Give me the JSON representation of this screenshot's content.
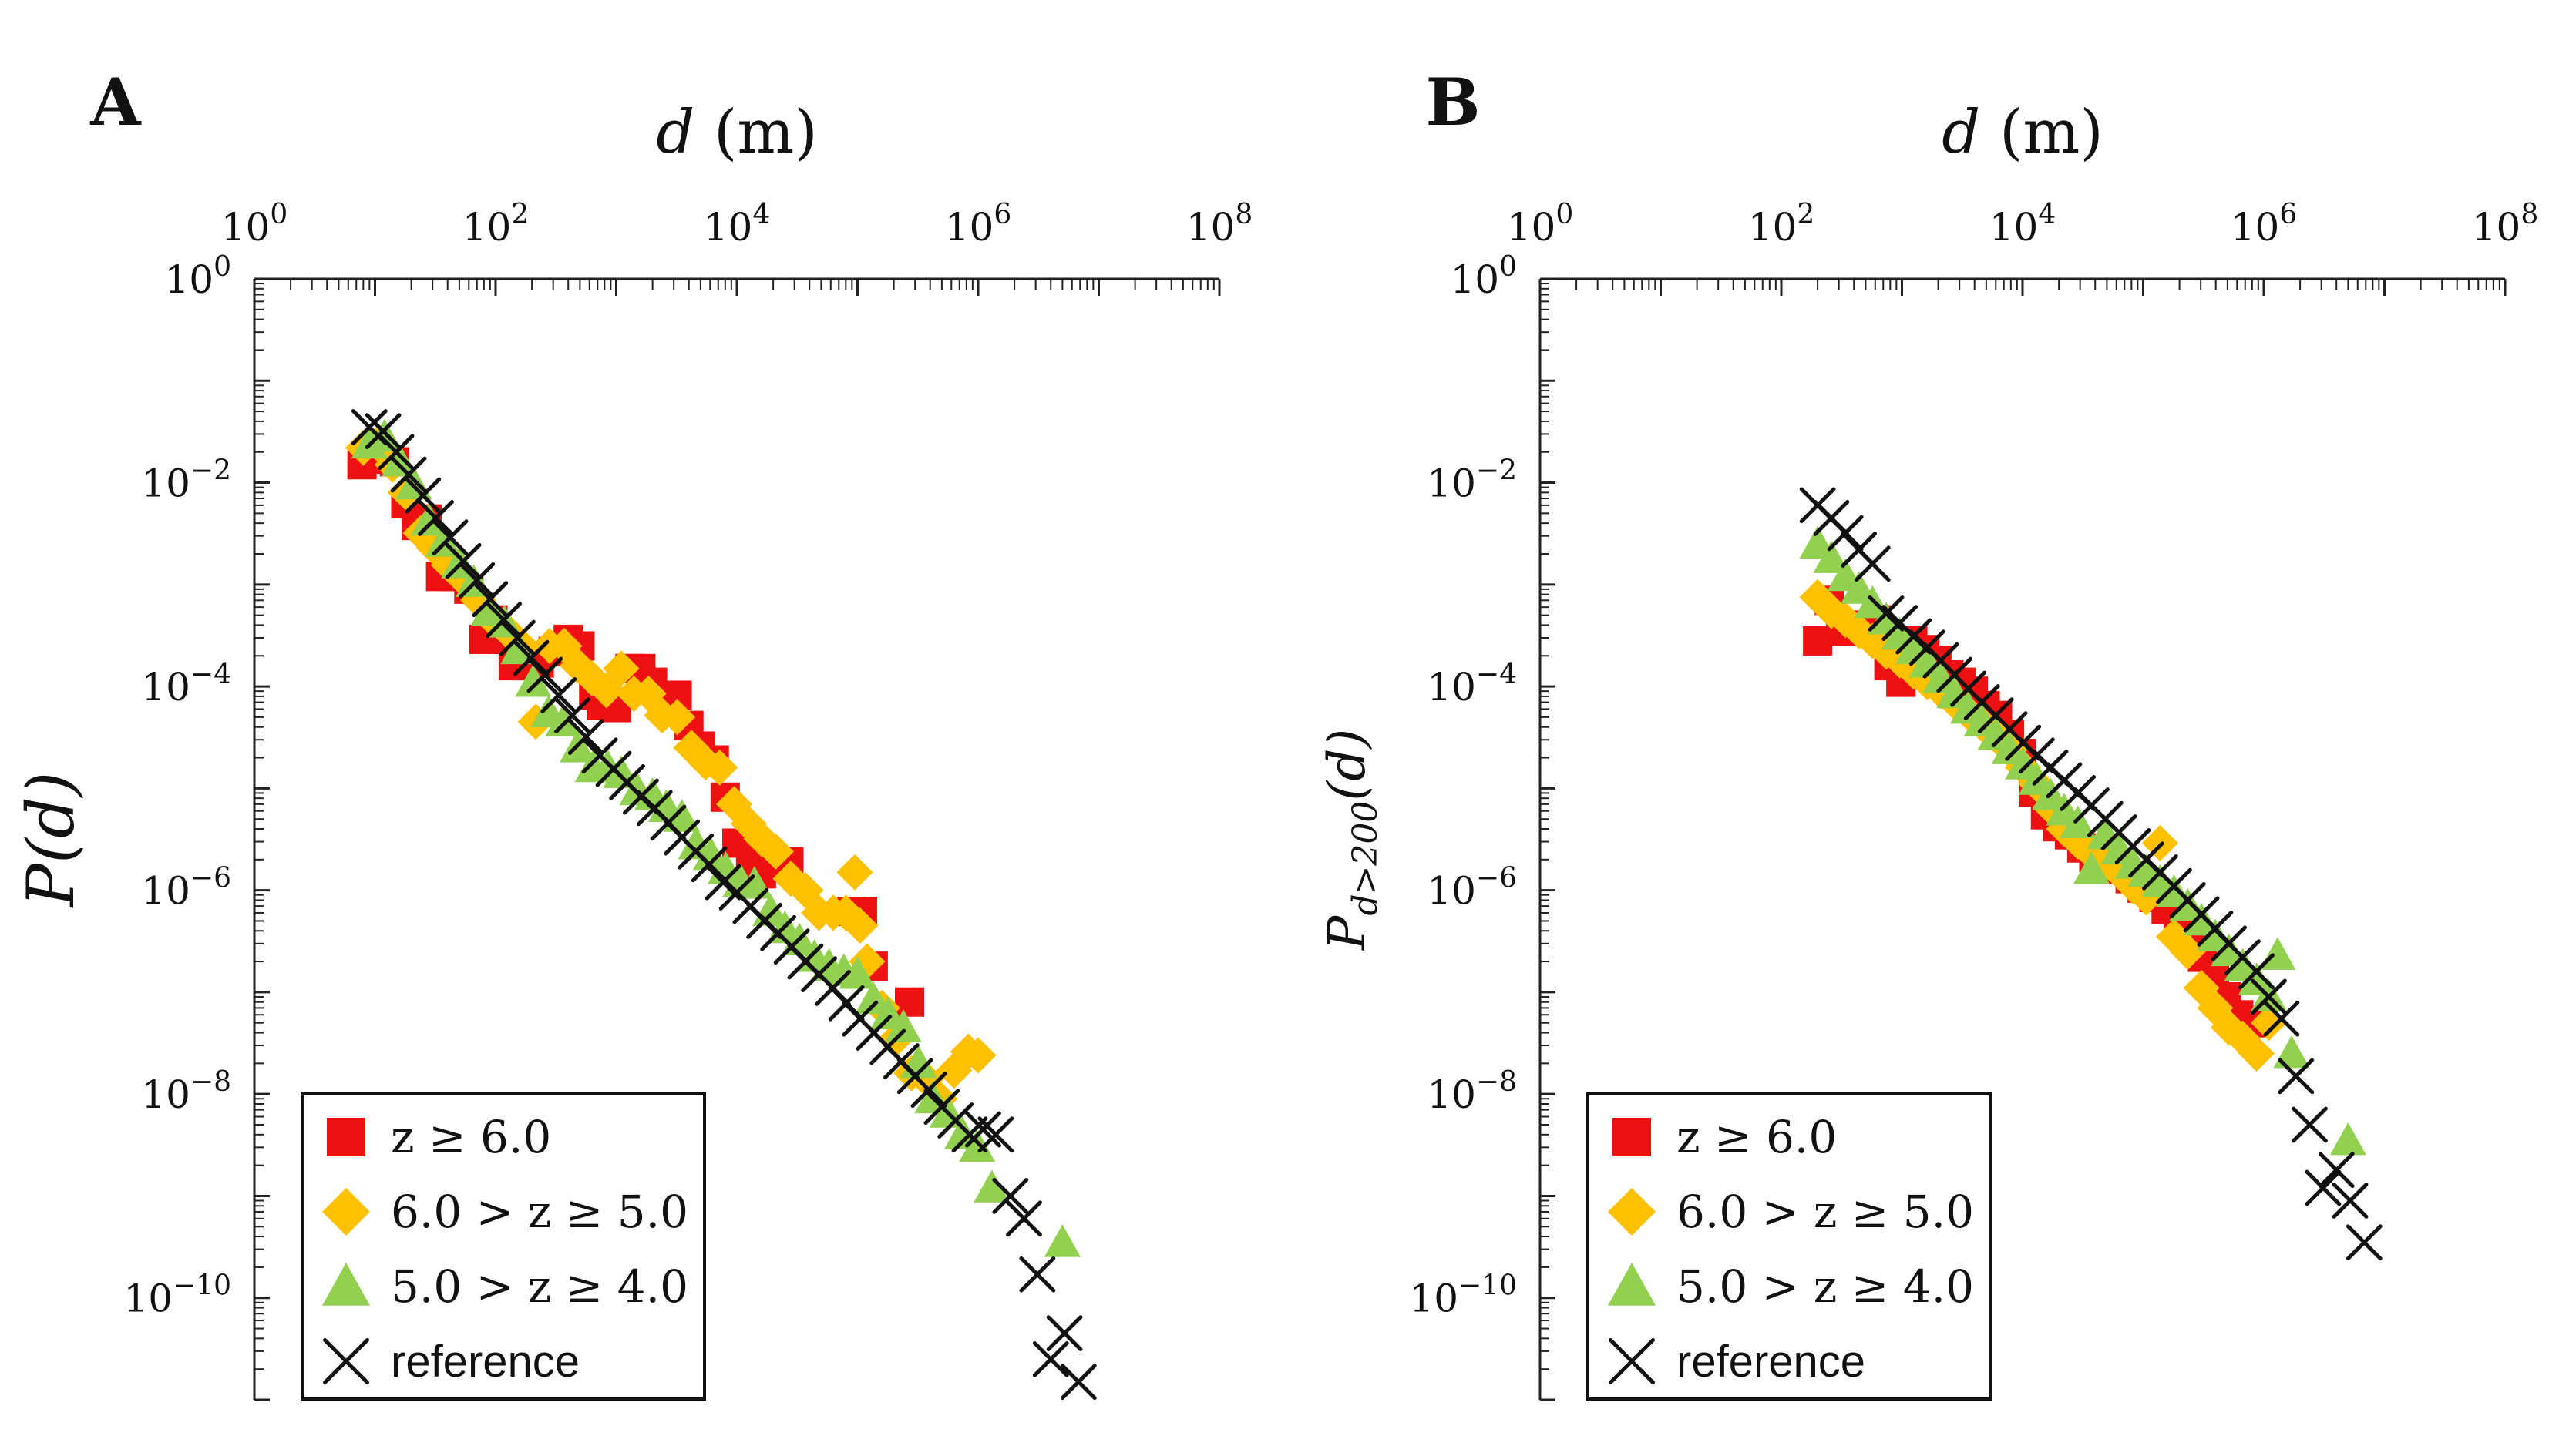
{
  "chart_data": [
    {
      "type": "scatter",
      "panel_label": "A",
      "xlabel": "d (m)",
      "ylabel": "P(d)",
      "xscale": "log",
      "yscale": "log",
      "xlim": [
        1,
        100000000
      ],
      "ylim": [
        1e-11,
        1
      ],
      "x_ticks": [
        1,
        100,
        10000,
        1000000,
        100000000
      ],
      "x_tick_labels": [
        "10^0",
        "10^2",
        "10^4",
        "10^6",
        "10^8"
      ],
      "y_ticks": [
        1,
        0.01,
        0.0001,
        1e-06,
        1e-08,
        1e-10
      ],
      "y_tick_labels": [
        "10^0",
        "10^-2",
        "10^-4",
        "10^-6",
        "10^-8",
        "10^-10"
      ],
      "legend_position": "bottom-left",
      "series": [
        {
          "name": "z ≥ 6.0",
          "marker": "square",
          "color": "#ee1111",
          "x": [
            7.8,
            10.7,
            14.5,
            18,
            22,
            27,
            35,
            45,
            60,
            80,
            95,
            110,
            140,
            180,
            230,
            300,
            400,
            500,
            650,
            750,
            1000,
            1300,
            1600,
            2000,
            2600,
            3200,
            4000,
            5000,
            6500,
            8000,
            10000,
            13000,
            16000,
            20000,
            27000,
            90000,
            110000,
            135000,
            270000
          ],
          "y": [
            0.015,
            0.017,
            0.016,
            0.0062,
            0.0038,
            0.0044,
            0.0012,
            0.0012,
            0.0009,
            0.00029,
            0.00045,
            0.00029,
            0.00016,
            0.00016,
            0.00017,
            0.00022,
            0.00029,
            0.00025,
            8.2e-05,
            6.5e-05,
            6.2e-05,
            0.00015,
            0.00015,
            0.00011,
            8.2e-05,
            8.2e-05,
            4.15e-05,
            2.6e-05,
            1.9e-05,
            8.2e-06,
            2.9e-06,
            1.9e-06,
            1.45e-06,
            1.85e-06,
            1.9e-06,
            6.2e-07,
            6.2e-07,
            1.8e-07,
            8e-08
          ]
        },
        {
          "name": "6.0 > z ≥ 5.0",
          "marker": "diamond",
          "color": "#ffc000",
          "x": [
            8,
            10.5,
            14,
            18,
            24,
            31,
            41,
            55,
            72,
            95,
            125,
            165,
            215,
            280,
            370,
            480,
            630,
            830,
            1100,
            1400,
            1850,
            2400,
            3200,
            4200,
            5500,
            7200,
            9500,
            12500,
            16000,
            21000,
            28000,
            37000,
            48000,
            63000,
            80000,
            95000,
            105000,
            120000,
            160000,
            210000,
            280000,
            370000,
            480000,
            630000,
            830000,
            1000000
          ],
          "y": [
            0.022,
            0.024,
            0.015,
            0.008,
            0.0032,
            0.0023,
            0.00155,
            0.0011,
            0.0007,
            0.00045,
            0.00035,
            0.00025,
            4.5e-05,
            0.00025,
            0.00025,
            0.00016,
            0.00012,
            9.2e-05,
            0.00015,
            8.5e-05,
            8.5e-05,
            5.2e-05,
            5e-05,
            2.5e-05,
            1.8e-05,
            1.6e-05,
            7e-06,
            4.5e-06,
            3.2e-06,
            2.4e-06,
            1.3e-06,
            1e-06,
            6e-07,
            6e-07,
            6e-07,
            1.5e-06,
            4.5e-07,
            2e-07,
            7e-08,
            3.5e-08,
            1.6e-08,
            1.4e-08,
            9e-09,
            1.7e-08,
            2.6e-08,
            2.4e-08
          ]
        },
        {
          "name": "5.0 > z ≥ 4.0",
          "marker": "triangle",
          "color": "#92d050",
          "x": [
            9,
            12,
            16,
            21,
            28,
            37,
            50,
            66,
            88,
            118,
            155,
            205,
            275,
            365,
            480,
            640,
            850,
            1100,
            1500,
            2000,
            2600,
            3500,
            4600,
            6100,
            8100,
            10800,
            14000,
            19000,
            25000,
            33000,
            44000,
            58000,
            77000,
            100000,
            135000,
            180000,
            240000,
            320000,
            420000,
            560000,
            740000,
            980000,
            1300000,
            5000000
          ],
          "y": [
            0.024,
            0.028,
            0.016,
            0.0095,
            0.0042,
            0.0026,
            0.0016,
            0.00105,
            0.00055,
            0.00042,
            0.00023,
            0.00011,
            5.5e-05,
            4.5e-05,
            2.5e-05,
            1.6e-05,
            1.6e-05,
            1.4e-05,
            9.5e-06,
            8.5e-06,
            6.5e-06,
            5.2e-06,
            2.8e-06,
            2.2e-06,
            1.6e-06,
            1.2e-06,
            1.15e-06,
            6.2e-07,
            4.2e-07,
            3.2e-07,
            2.2e-07,
            1.8e-07,
            1.6e-07,
            1.5e-07,
            8.5e-08,
            6e-08,
            4.5e-08,
            2e-08,
            9e-09,
            6.5e-09,
            4e-09,
            3e-09,
            1.2e-09,
            3.5e-10
          ]
        },
        {
          "name": "reference",
          "marker": "x",
          "color": "#111111",
          "x": [
            9,
            11.7,
            15,
            19,
            25,
            32,
            42,
            54,
            70,
            90,
            117,
            152,
            197,
            256,
            333,
            432,
            562,
            730,
            950,
            1230,
            1600,
            2080,
            2700,
            3500,
            4560,
            5900,
            7700,
            10000,
            13000,
            16900,
            22000,
            28500,
            37000,
            48000,
            62500,
            81000,
            105000,
            137000,
            178000,
            231000,
            300000,
            390000,
            500000,
            650000,
            850000,
            1100000,
            1400000,
            1850000,
            2400000,
            3100000,
            4000000,
            5200000,
            6800000
          ],
          "y": [
            0.035,
            0.032,
            0.02,
            0.012,
            0.0075,
            0.0045,
            0.0029,
            0.0017,
            0.0011,
            0.00072,
            0.00045,
            0.0003,
            0.00019,
            0.00013,
            8.2e-05,
            5.2e-05,
            3.2e-05,
            2.1e-05,
            1.55e-05,
            1.15e-05,
            8.3e-06,
            6.4e-06,
            4.6e-06,
            3.3e-06,
            2.4e-06,
            1.8e-06,
            1.2e-06,
            9.5e-07,
            7e-07,
            5e-07,
            3.8e-07,
            2.8e-07,
            2e-07,
            1.5e-07,
            1.1e-07,
            7.8e-08,
            5.5e-08,
            4e-08,
            2.9e-08,
            2.1e-08,
            1.5e-08,
            1.1e-08,
            7.5e-09,
            5.5e-09,
            4e-09,
            4.5e-09,
            4e-09,
            1e-09,
            6e-10,
            1.7e-10,
            2.5e-11,
            4.5e-11,
            1.5e-11
          ]
        }
      ]
    },
    {
      "type": "scatter",
      "panel_label": "B",
      "xlabel": "d (m)",
      "ylabel": "Pd>200(d)",
      "ylabel_main": "P",
      "ylabel_sub": "d>200",
      "ylabel_tail": "(d)",
      "xscale": "log",
      "yscale": "log",
      "xlim": [
        1,
        100000000
      ],
      "ylim": [
        1e-11,
        1
      ],
      "x_ticks": [
        1,
        100,
        10000,
        1000000,
        100000000
      ],
      "x_tick_labels": [
        "10^0",
        "10^2",
        "10^4",
        "10^6",
        "10^8"
      ],
      "y_ticks": [
        1,
        0.01,
        0.0001,
        1e-06,
        1e-08,
        1e-10
      ],
      "y_tick_labels": [
        "10^0",
        "10^-2",
        "10^-4",
        "10^-6",
        "10^-8",
        "10^-10"
      ],
      "legend_position": "bottom-left",
      "series": [
        {
          "name": "z ≥ 6.0",
          "marker": "square",
          "color": "#ee1111",
          "x": [
            200,
            250,
            310,
            400,
            500,
            620,
            780,
            980,
            1230,
            1550,
            1950,
            2450,
            3100,
            3900,
            4900,
            6200,
            7800,
            9800,
            12300,
            15500,
            19500,
            24500,
            31000,
            39000,
            49000,
            62000,
            78000,
            98000,
            123000,
            155000,
            195000,
            245000,
            310000,
            390000,
            490000,
            620000,
            780000
          ],
          "y": [
            0.00028,
            0.0007,
            0.00035,
            0.0004,
            0.00035,
            0.00045,
            0.00016,
            0.00011,
            0.00028,
            0.00023,
            0.00018,
            0.00013,
            0.00011,
            9e-05,
            6.5e-05,
            5.2e-05,
            3.4e-05,
            2.2e-05,
            9.2e-06,
            5.5e-06,
            4.2e-06,
            3.5e-06,
            2.6e-06,
            2.1e-06,
            1.8e-06,
            1.6e-06,
            1.3e-06,
            1.05e-06,
            8.5e-07,
            6.5e-07,
            5e-07,
            3.2e-07,
            2.2e-07,
            1.4e-07,
            9e-08,
            6e-08,
            5e-08
          ]
        },
        {
          "name": "6.0 > z ≥ 5.0",
          "marker": "diamond",
          "color": "#ffc000",
          "x": [
            200,
            260,
            340,
            440,
            570,
            740,
            960,
            1250,
            1620,
            2100,
            2730,
            3550,
            4600,
            6000,
            7800,
            10100,
            13100,
            17000,
            22100,
            28700,
            37300,
            48500,
            63000,
            82000,
            106000,
            138000,
            180000,
            234000,
            304000,
            395000,
            513000,
            667000,
            870000,
            1100000
          ],
          "y": [
            0.00075,
            0.00055,
            0.00045,
            0.00035,
            0.00028,
            0.00022,
            0.00018,
            0.00014,
            0.00011,
            9e-05,
            7e-05,
            5.5e-05,
            4.3e-05,
            3.3e-05,
            2.4e-05,
            1.6e-05,
            1.1e-05,
            6.5e-06,
            4e-06,
            3e-06,
            2.3e-06,
            1.8e-06,
            1.5e-06,
            1.1e-06,
            8.5e-07,
            2.9e-06,
            3.5e-07,
            2.5e-07,
            1.1e-07,
            7e-08,
            4.5e-08,
            3.5e-08,
            2.5e-08,
            5e-08
          ]
        },
        {
          "name": "5.0 > z ≥ 4.0",
          "marker": "triangle",
          "color": "#92d050",
          "x": [
            200,
            260,
            340,
            440,
            570,
            740,
            960,
            1250,
            1620,
            2100,
            2730,
            3550,
            4600,
            6000,
            7800,
            10100,
            13100,
            17000,
            22100,
            28700,
            37300,
            48500,
            63000,
            82000,
            106000,
            138000,
            180000,
            234000,
            304000,
            395000,
            513000,
            667000,
            870000,
            1100000,
            1300000,
            1700000,
            5000000
          ],
          "y": [
            0.0025,
            0.0018,
            0.0012,
            0.0009,
            0.00065,
            0.00045,
            0.00032,
            0.00023,
            0.00017,
            0.00012,
            8.5e-05,
            6e-05,
            4.5e-05,
            3.3e-05,
            2.4e-05,
            1.7e-05,
            1.2e-05,
            8.5e-06,
            6e-06,
            4.5e-06,
            1.6e-06,
            3.5e-06,
            2.5e-06,
            1.8e-06,
            1.5e-06,
            1.2e-06,
            9.5e-07,
            7e-07,
            5e-07,
            3.5e-07,
            2.5e-07,
            1.8e-07,
            1.3e-07,
            9e-08,
            2.3e-07,
            2.5e-08,
            3.5e-09
          ]
        },
        {
          "name": "reference",
          "marker": "x",
          "color": "#111111",
          "x": [
            200,
            260,
            340,
            440,
            570,
            740,
            960,
            1250,
            1620,
            2100,
            2730,
            3550,
            4600,
            6000,
            7800,
            10100,
            13100,
            17000,
            22100,
            28700,
            37300,
            48500,
            63000,
            82000,
            106000,
            138000,
            180000,
            234000,
            304000,
            395000,
            513000,
            667000,
            870000,
            1100000,
            1400000,
            1850000,
            2400000,
            3100000,
            4000000,
            5200000,
            6800000
          ],
          "y": [
            0.006,
            0.0045,
            0.0032,
            0.0022,
            0.0016,
            0.00052,
            0.00042,
            0.00031,
            0.00024,
            0.00018,
            0.00013,
            9.5e-05,
            7e-05,
            5.2e-05,
            3.8e-05,
            2.8e-05,
            2.1e-05,
            1.6e-05,
            1.2e-05,
            9e-06,
            6.8e-06,
            5e-06,
            3.7e-06,
            2.7e-06,
            2e-06,
            1.5e-06,
            1.1e-06,
            8e-07,
            5.8e-07,
            4.2e-07,
            3e-07,
            2.2e-07,
            1.6e-07,
            9e-08,
            5.5e-08,
            1.5e-08,
            5e-09,
            1.2e-09,
            1.8e-09,
            9e-10,
            3.5e-10
          ]
        }
      ]
    }
  ]
}
